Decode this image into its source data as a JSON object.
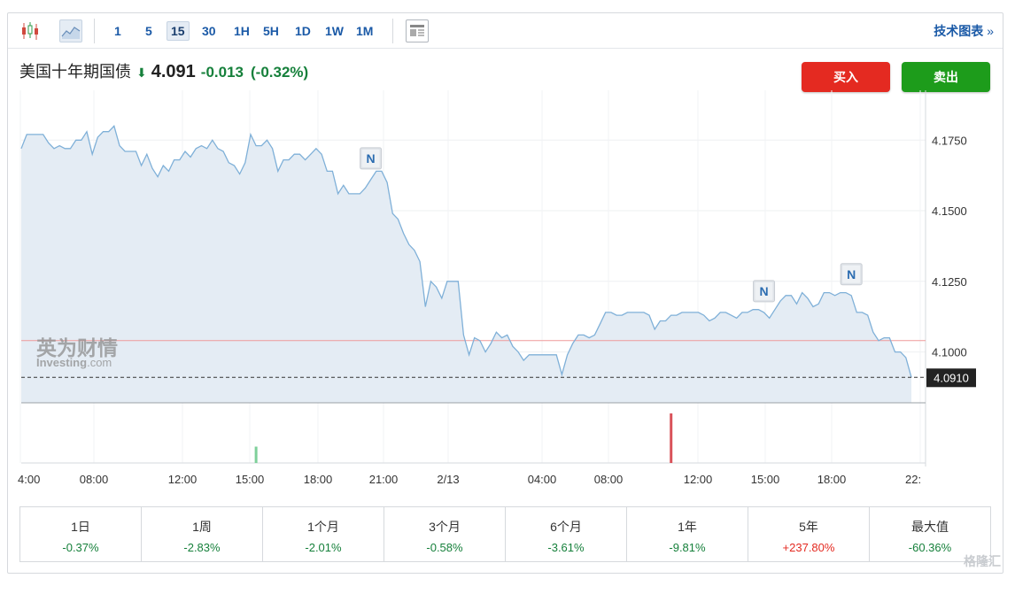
{
  "toolbar": {
    "intervals": [
      "1",
      "5",
      "15",
      "30",
      "1H",
      "5H",
      "1D",
      "1W",
      "1M"
    ],
    "active_interval": "15",
    "tech_chart_label": "技术图表",
    "tech_chart_chevron": "»"
  },
  "instrument": {
    "name": "美国十年期国债",
    "price": "4.091",
    "change": "-0.013",
    "change_pct": "(-0.32%)",
    "direction_icon": "down-arrow-icon"
  },
  "actions": {
    "buy_label": "买入",
    "sell_label": "卖出"
  },
  "watermark": {
    "cn": "英为财情",
    "en": "Investing",
    "domain": ".com"
  },
  "corner_logo": "格隆汇",
  "chart_data": {
    "type": "area",
    "x_tick_labels": [
      "4:00",
      "08:00",
      "12:00",
      "15:00",
      "18:00",
      "21:00",
      "2/13",
      "04:00",
      "08:00",
      "12:00",
      "15:00",
      "18:00",
      "22:"
    ],
    "y_tick_labels": [
      "4.1750",
      "4.1500",
      "4.1250",
      "4.1000"
    ],
    "y_ticks": [
      4.175,
      4.15,
      4.125,
      4.1
    ],
    "ylim": [
      4.082,
      4.1895
    ],
    "last_value_label": "4.0910",
    "last_value": 4.091,
    "reference_level": 4.104,
    "news_markers": [
      {
        "label": "N",
        "index": 64
      },
      {
        "label": "N",
        "index": 136
      },
      {
        "label": "N",
        "index": 152
      }
    ],
    "values": [
      4.172,
      4.177,
      4.177,
      4.177,
      4.177,
      4.174,
      4.172,
      4.173,
      4.172,
      4.172,
      4.175,
      4.175,
      4.178,
      4.17,
      4.176,
      4.178,
      4.178,
      4.18,
      4.173,
      4.171,
      4.171,
      4.171,
      4.166,
      4.17,
      4.165,
      4.162,
      4.166,
      4.164,
      4.168,
      4.168,
      4.171,
      4.169,
      4.172,
      4.173,
      4.172,
      4.175,
      4.172,
      4.171,
      4.167,
      4.166,
      4.163,
      4.167,
      4.177,
      4.173,
      4.173,
      4.175,
      4.172,
      4.164,
      4.168,
      4.168,
      4.17,
      4.17,
      4.168,
      4.17,
      4.172,
      4.17,
      4.164,
      4.164,
      4.156,
      4.159,
      4.156,
      4.156,
      4.156,
      4.158,
      4.161,
      4.164,
      4.164,
      4.16,
      4.149,
      4.147,
      4.142,
      4.138,
      4.136,
      4.132,
      4.116,
      4.125,
      4.123,
      4.119,
      4.125,
      4.125,
      4.125,
      4.106,
      4.099,
      4.105,
      4.104,
      4.1,
      4.103,
      4.107,
      4.105,
      4.106,
      4.102,
      4.1,
      4.097,
      4.099,
      4.099,
      4.099,
      4.099,
      4.099,
      4.099,
      4.092,
      4.099,
      4.103,
      4.106,
      4.106,
      4.105,
      4.106,
      4.11,
      4.114,
      4.114,
      4.113,
      4.113,
      4.114,
      4.114,
      4.114,
      4.114,
      4.113,
      4.108,
      4.111,
      4.111,
      4.113,
      4.113,
      4.114,
      4.114,
      4.114,
      4.114,
      4.113,
      4.111,
      4.112,
      4.114,
      4.114,
      4.113,
      4.112,
      4.114,
      4.114,
      4.115,
      4.115,
      4.114,
      4.112,
      4.115,
      4.118,
      4.12,
      4.12,
      4.117,
      4.121,
      4.119,
      4.116,
      4.117,
      4.121,
      4.121,
      4.12,
      4.121,
      4.121,
      4.12,
      4.114,
      4.114,
      4.113,
      4.107,
      4.104,
      4.105,
      4.105,
      4.1,
      4.1,
      4.098,
      4.091
    ],
    "volume_bars": [
      {
        "index": 43,
        "height": 0.33,
        "color": "#7ed09a"
      },
      {
        "index": 119,
        "height": 1.0,
        "color": "#d9525a"
      }
    ]
  },
  "periods": [
    {
      "label": "1日",
      "value": "-0.37%",
      "sign": "neg"
    },
    {
      "label": "1周",
      "value": "-2.83%",
      "sign": "neg"
    },
    {
      "label": "1个月",
      "value": "-2.01%",
      "sign": "neg"
    },
    {
      "label": "3个月",
      "value": "-0.58%",
      "sign": "neg"
    },
    {
      "label": "6个月",
      "value": "-3.61%",
      "sign": "neg"
    },
    {
      "label": "1年",
      "value": "-9.81%",
      "sign": "neg"
    },
    {
      "label": "5年",
      "value": "+237.80%",
      "sign": "pos"
    },
    {
      "label": "最大值",
      "value": "-60.36%",
      "sign": "neg"
    }
  ]
}
